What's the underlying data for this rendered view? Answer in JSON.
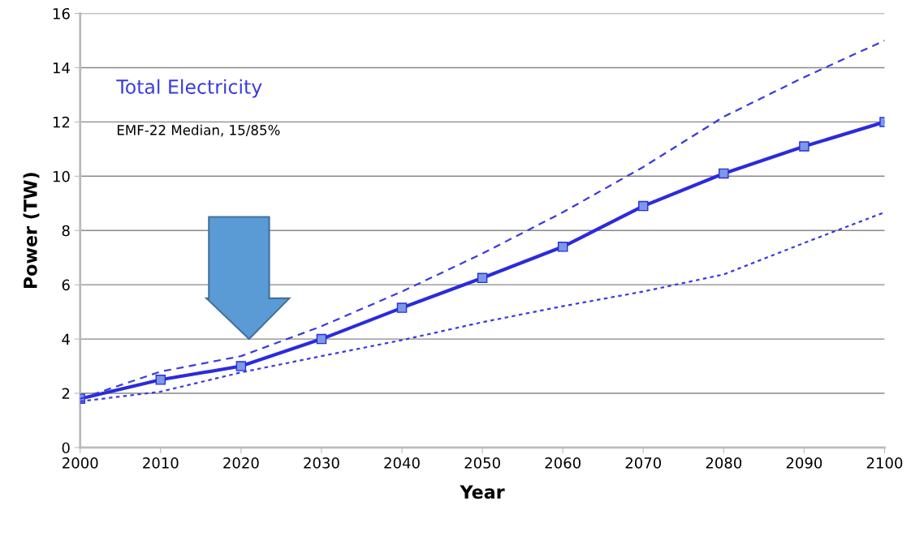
{
  "chart_data": {
    "type": "line",
    "xlabel": "Year",
    "ylabel": "Power (TW)",
    "x": [
      2000,
      2010,
      2020,
      2030,
      2040,
      2050,
      2060,
      2070,
      2080,
      2090,
      2100
    ],
    "series": [
      {
        "color": "#2b2bdc",
        "values": [
          1.8,
          2.5,
          3.0,
          4.0,
          5.15,
          6.25,
          7.4,
          8.9,
          10.1,
          11.1,
          12.0
        ],
        "marker": "square",
        "line_style": "solid"
      },
      {
        "color": "#3a3ae0",
        "values": [
          1.8,
          2.8,
          3.37,
          4.47,
          5.75,
          7.15,
          8.67,
          10.34,
          12.19,
          13.65,
          15.0
        ],
        "marker": "none",
        "line_style": "dashed"
      },
      {
        "color": "#3a3ae0",
        "values": [
          1.7,
          2.06,
          2.77,
          3.37,
          3.96,
          4.62,
          5.21,
          5.75,
          6.38,
          7.54,
          8.67
        ],
        "marker": "none",
        "line_style": "dotted"
      }
    ],
    "xlim": [
      2000,
      2100
    ],
    "xticks": [
      2000,
      2010,
      2020,
      2030,
      2040,
      2050,
      2060,
      2070,
      2080,
      2090,
      2100
    ],
    "ylim": [
      0,
      16
    ],
    "yticks": [
      0,
      2,
      4,
      6,
      8,
      10,
      12,
      14,
      16
    ],
    "grid": "y",
    "legend": false,
    "annotations": [
      "Total Electricity",
      "EMF-22 Median, 15/85%"
    ]
  }
}
